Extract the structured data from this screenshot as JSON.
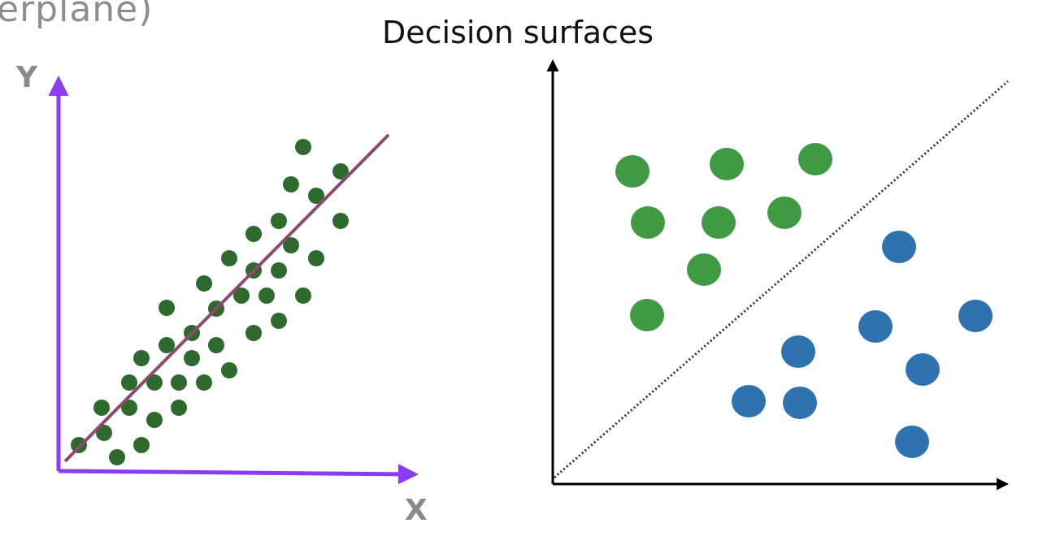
{
  "header": {
    "partial_text": "erplane)",
    "title": "Decision surfaces"
  },
  "regression_plot": {
    "y_axis_label": "Y",
    "x_axis_label": "X",
    "colors": {
      "axes": "#8a3cf0",
      "fit_line": "#8e4a6e",
      "points": "#2e6a2e"
    }
  },
  "classification_plot": {
    "colors": {
      "axes": "#000000",
      "boundary": "#333333",
      "class_a": "#3f9a43",
      "class_b": "#2f72b0"
    }
  }
}
